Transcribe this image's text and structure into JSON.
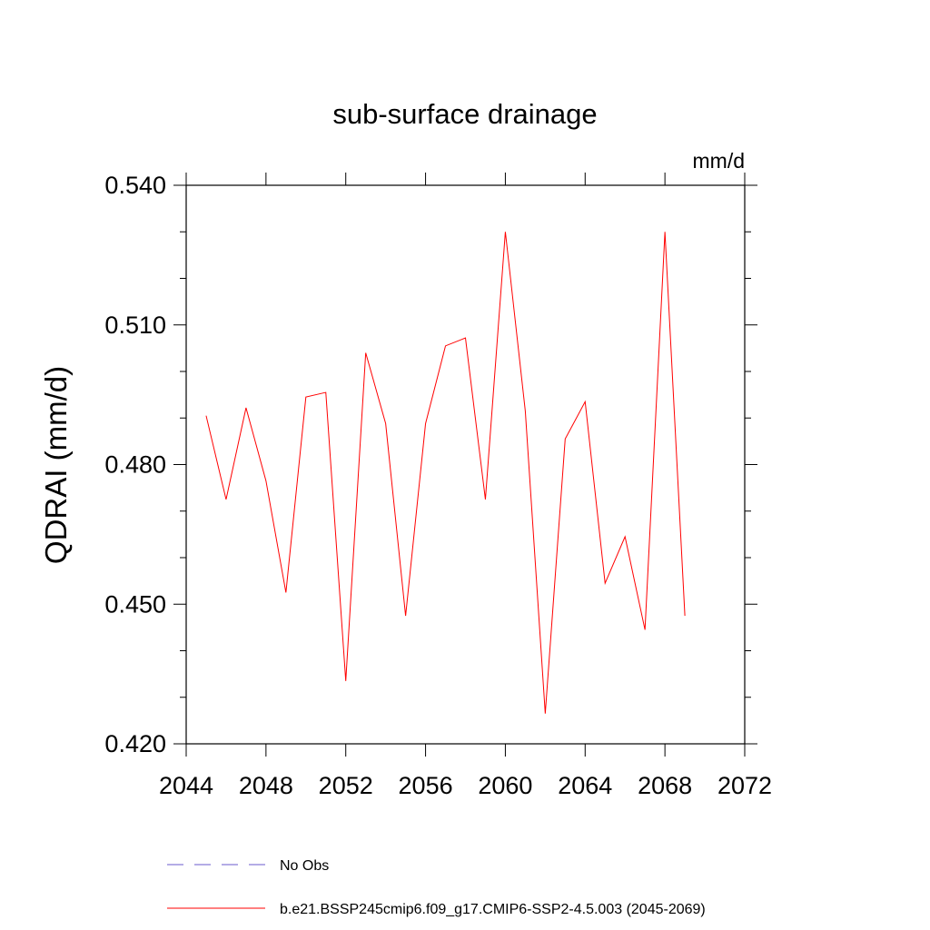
{
  "chart_data": {
    "type": "line",
    "title": "sub-surface drainage",
    "units": "mm/d",
    "ylabel": "QDRAI  (mm/d)",
    "xlabel": "",
    "xlim": [
      2044,
      2072
    ],
    "ylim": [
      0.42,
      0.54
    ],
    "xticks": [
      "2044",
      "2048",
      "2052",
      "2056",
      "2060",
      "2064",
      "2068",
      "2072"
    ],
    "yticks": [
      "0.420",
      "0.450",
      "0.480",
      "0.510",
      "0.540"
    ],
    "series": [
      {
        "name": "b.e21.BSSP245cmip6.f09_g17.CMIP6-SSP2-4.5.003 (2045-2069)",
        "color": "#ff0000",
        "x": [
          2045,
          2046,
          2047,
          2048,
          2049,
          2050,
          2051,
          2052,
          2053,
          2054,
          2055,
          2056,
          2057,
          2058,
          2059,
          2060,
          2061,
          2062,
          2063,
          2064,
          2065,
          2066,
          2067,
          2068,
          2069
        ],
        "y": [
          0.4905,
          0.4725,
          0.4922,
          0.4765,
          0.4525,
          0.4945,
          0.4955,
          0.4335,
          0.504,
          0.4888,
          0.4475,
          0.4888,
          0.5055,
          0.5072,
          0.4725,
          0.53,
          0.4915,
          0.4265,
          0.4855,
          0.4935,
          0.4545,
          0.4645,
          0.4445,
          0.53,
          0.4475
        ]
      }
    ],
    "legend": [
      {
        "label": "No Obs",
        "color": "#6a5acd",
        "style": "dashed"
      },
      {
        "label": "b.e21.BSSP245cmip6.f09_g17.CMIP6-SSP2-4.5.003 (2045-2069)",
        "color": "#ff0000",
        "style": "solid"
      }
    ],
    "legend_position": "bottom"
  }
}
